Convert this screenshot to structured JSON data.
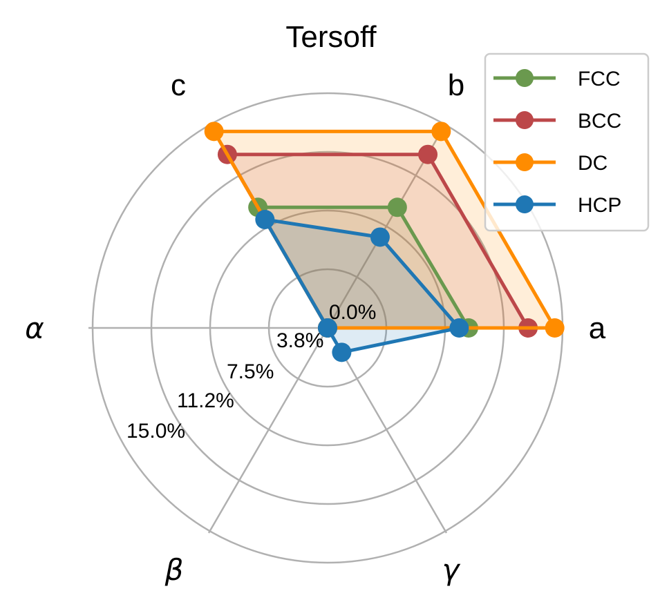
{
  "chart_data": {
    "type": "radar",
    "title": "Tersoff",
    "axes": [
      "a",
      "b",
      "c",
      "α",
      "β",
      "γ"
    ],
    "axis_angles_deg": [
      0,
      60,
      120,
      180,
      240,
      300
    ],
    "rlim": [
      0,
      15.0
    ],
    "r_ticks": [
      0.0,
      3.8,
      7.5,
      11.2,
      15.0
    ],
    "r_tick_labels": [
      "0.0%",
      "3.8%",
      "7.5%",
      "11.2%",
      "15.0%"
    ],
    "grid": true,
    "legend_position": "upper right",
    "series": [
      {
        "name": "FCC",
        "color": "#6a994e",
        "values": [
          9.0,
          8.9,
          8.9,
          0.0,
          0.0,
          0.0
        ]
      },
      {
        "name": "BCC",
        "color": "#bc4749",
        "values": [
          12.8,
          12.8,
          12.8,
          0.0,
          0.0,
          0.0
        ]
      },
      {
        "name": "DC",
        "color": "#ff8c00",
        "values": [
          14.5,
          14.5,
          14.5,
          0.0,
          0.0,
          0.0
        ]
      },
      {
        "name": "HCP",
        "color": "#1f77b4",
        "values": [
          8.4,
          6.7,
          8.0,
          0.0,
          0.0,
          1.8
        ]
      }
    ]
  },
  "title": "Tersoff",
  "axis_labels": {
    "a": "a",
    "b": "b",
    "c": "c",
    "alpha": "α",
    "beta": "β",
    "gamma": "γ"
  },
  "tick_labels": [
    "0.0%",
    "3.8%",
    "7.5%",
    "11.2%",
    "15.0%"
  ],
  "legend": [
    "FCC",
    "BCC",
    "DC",
    "HCP"
  ]
}
